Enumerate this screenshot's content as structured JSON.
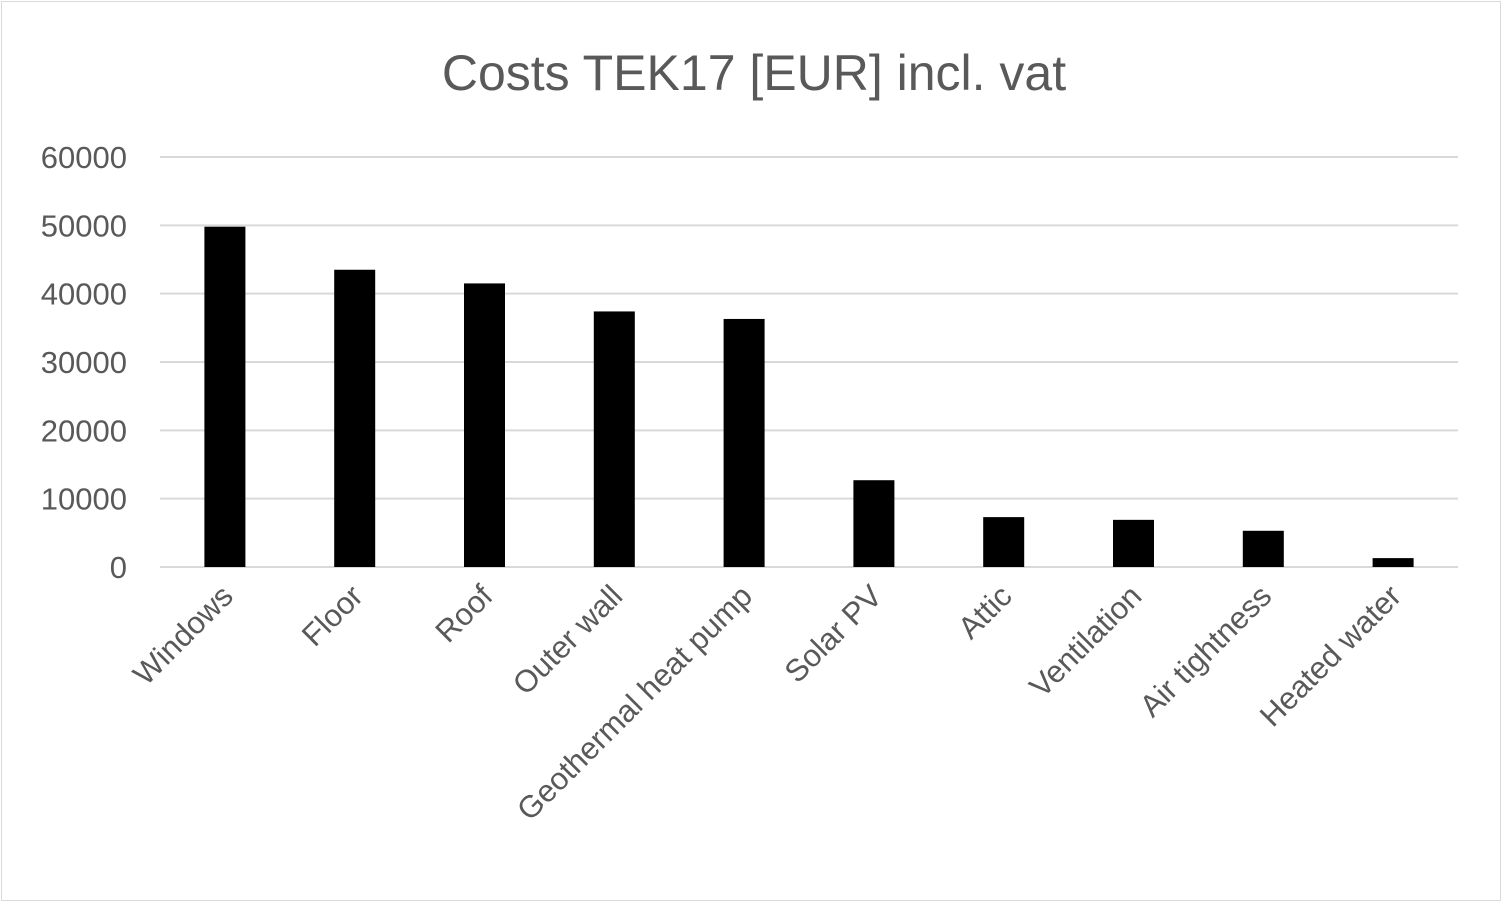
{
  "chart_data": {
    "type": "bar",
    "title": "Costs TEK17 [EUR] incl. vat",
    "xlabel": "",
    "ylabel": "",
    "categories": [
      "Windows",
      "Floor",
      "Roof",
      "Outer wall",
      "Geothermal heat pump",
      "Solar PV",
      "Attic",
      "Ventilation",
      "Air tightness",
      "Heated water"
    ],
    "values": [
      49800,
      43500,
      41500,
      37400,
      36300,
      12700,
      7300,
      6900,
      5300,
      1300
    ],
    "ylim": [
      0,
      60000
    ],
    "yticks": [
      "0",
      "10000",
      "20000",
      "30000",
      "40000",
      "50000",
      "60000"
    ],
    "grid": true,
    "legend": "none",
    "bar_color": "#000000"
  }
}
